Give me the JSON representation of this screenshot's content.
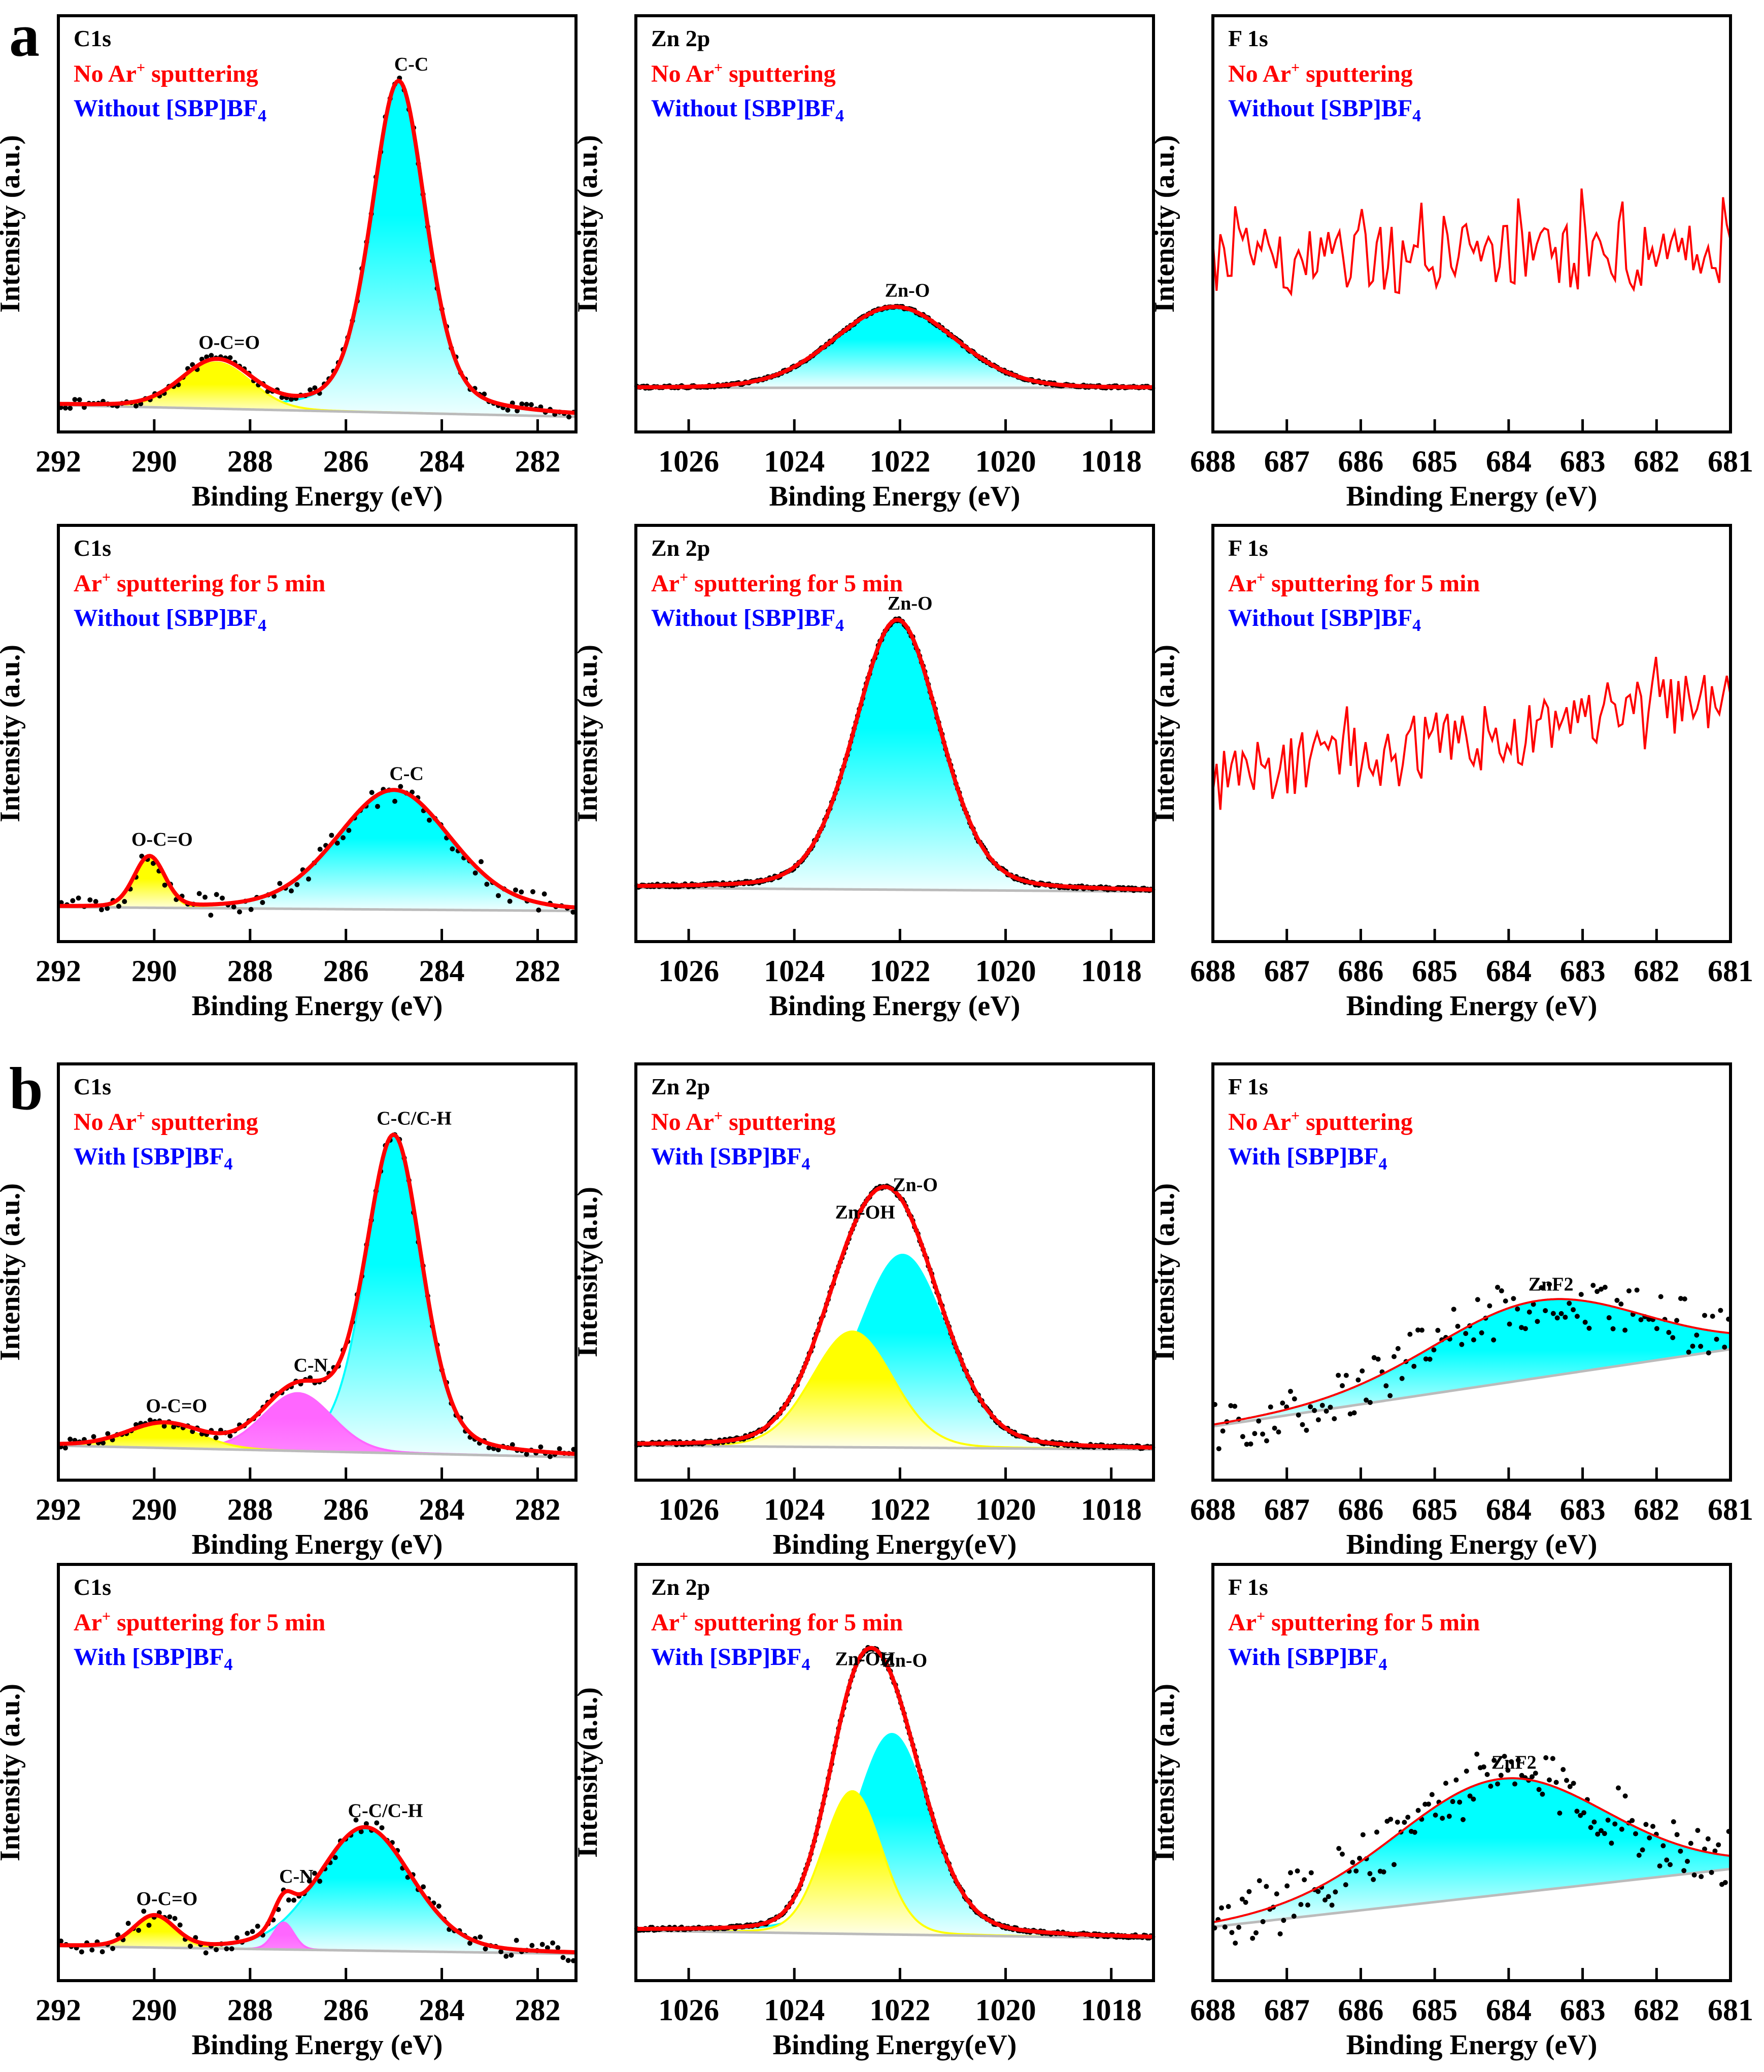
{
  "figure_labels": [
    "a",
    "b"
  ],
  "chart_data": [
    {
      "type": "line",
      "title": "C1s",
      "condition_pre": "No Ar",
      "condition_sup": "+",
      "condition_post": " sputtering",
      "additive": "Without [SBP]BF",
      "additive_sub": "4",
      "xlabel": "Binding Energy (eV)",
      "ylabel": "Intensity (a.u.)",
      "xlim": [
        292,
        281.2
      ],
      "ylim": [
        0,
        1
      ],
      "xticks": [
        "292",
        "290",
        "288",
        "286",
        "284",
        "282"
      ],
      "bg": [
        0.03,
        0.0
      ],
      "mode": "fit",
      "noise": 0.012,
      "points": 110,
      "peaks": [
        {
          "label": "C-C",
          "center": 284.9,
          "height": 0.86,
          "fwhm": 1.35,
          "eta": 0.35,
          "color": "#00ffff"
        },
        {
          "label": "O-C=O",
          "center": 288.7,
          "height": 0.12,
          "fwhm": 1.7,
          "eta": 0.1,
          "color": "#ffff00"
        }
      ]
    },
    {
      "type": "line",
      "title": "Zn 2p",
      "condition_pre": "No Ar",
      "condition_sup": "+",
      "condition_post": " sputtering",
      "additive": "Without [SBP]BF",
      "additive_sub": "4",
      "xlabel": "Binding Energy (eV)",
      "ylabel": "Intensity (a.u.)",
      "xlim": [
        1027,
        1017.2
      ],
      "ylim": [
        0,
        1
      ],
      "xticks": [
        "1026",
        "1024",
        "1022",
        "1020",
        "1018"
      ],
      "bg": [
        0.075,
        0.075
      ],
      "mode": "fit",
      "noise": 0.003,
      "points": 300,
      "peaks": [
        {
          "label": "Zn-O",
          "center": 1022.1,
          "height": 0.21,
          "fwhm": 2.7,
          "eta": 0.1,
          "color": "#00ffff"
        }
      ]
    },
    {
      "type": "line",
      "title": "F 1s",
      "condition_pre": "No Ar",
      "condition_sup": "+",
      "condition_post": " sputtering",
      "additive": "Without [SBP]BF",
      "additive_sub": "4",
      "xlabel": "Binding Energy (eV)",
      "ylabel": "Intensity (a.u.)",
      "xlim": [
        688,
        681
      ],
      "ylim": [
        0,
        1
      ],
      "xticks": [
        "688",
        "687",
        "686",
        "685",
        "684",
        "683",
        "682",
        "681"
      ],
      "bg": [
        0.4,
        0.42
      ],
      "mode": "noise-line",
      "noise": 0.09,
      "points": 140,
      "peaks": []
    },
    {
      "type": "line",
      "title": "C1s",
      "condition_pre": "Ar",
      "condition_sup": "+",
      "condition_post": " sputtering for 5 min",
      "additive": "Without [SBP]BF",
      "additive_sub": "4",
      "xlabel": "Binding Energy (eV)",
      "ylabel": "Intensity (a.u.)",
      "xlim": [
        292,
        281.2
      ],
      "ylim": [
        0,
        1
      ],
      "xticks": [
        "292",
        "290",
        "288",
        "286",
        "284",
        "282"
      ],
      "bg": [
        0.05,
        0.04
      ],
      "mode": "fit",
      "noise": 0.03,
      "points": 90,
      "peaks": [
        {
          "label": "C-C",
          "center": 285.0,
          "height": 0.31,
          "fwhm": 2.8,
          "eta": 0.2,
          "color": "#00ffff"
        },
        {
          "label": "O-C=O",
          "center": 290.1,
          "height": 0.13,
          "fwhm": 0.75,
          "eta": 0.1,
          "color": "#ffff00"
        }
      ]
    },
    {
      "type": "line",
      "title": "Zn 2p",
      "condition_pre": "Ar",
      "condition_sup": "+",
      "condition_post": " sputtering for 5 min",
      "additive": "Without [SBP]BF",
      "additive_sub": "4",
      "xlabel": "Binding Energy (eV)",
      "ylabel": "Intensity (a.u.)",
      "xlim": [
        1027,
        1017.2
      ],
      "ylim": [
        0,
        1
      ],
      "xticks": [
        "1026",
        "1024",
        "1022",
        "1020",
        "1018"
      ],
      "bg": [
        0.1,
        0.09
      ],
      "mode": "fit",
      "noise": 0.004,
      "points": 300,
      "peaks": [
        {
          "label": "Zn-O",
          "center": 1022.05,
          "height": 0.7,
          "fwhm": 1.9,
          "eta": 0.2,
          "color": "#00ffff"
        }
      ]
    },
    {
      "type": "line",
      "title": "F 1s",
      "condition_pre": "Ar",
      "condition_sup": "+",
      "condition_post": " sputtering for 5 min",
      "additive": "Without [SBP]BF",
      "additive_sub": "4",
      "xlabel": "Binding Energy (eV)",
      "ylabel": "Intensity (a.u.)",
      "xlim": [
        688,
        681
      ],
      "ylim": [
        0,
        1
      ],
      "xticks": [
        "688",
        "687",
        "686",
        "685",
        "684",
        "683",
        "682",
        "681"
      ],
      "bg": [
        0.38,
        0.58
      ],
      "mode": "noise-line",
      "noise": 0.09,
      "points": 140,
      "peaks": []
    },
    {
      "type": "line",
      "title": "C1s",
      "condition_pre": "No Ar",
      "condition_sup": "+",
      "condition_post": " sputtering",
      "additive": "With [SBP]BF",
      "additive_sub": "4",
      "xlabel": "Binding Energy (eV)",
      "ylabel": "Intensity (a.u.)",
      "xlim": [
        292,
        281.2
      ],
      "ylim": [
        0,
        1
      ],
      "xticks": [
        "292",
        "290",
        "288",
        "286",
        "284",
        "282"
      ],
      "bg": [
        0.05,
        0.02
      ],
      "mode": "fit",
      "noise": 0.012,
      "points": 110,
      "peaks": [
        {
          "label": "C-C/C-H",
          "center": 285.0,
          "height": 0.82,
          "fwhm": 1.4,
          "eta": 0.3,
          "color": "#00ffff"
        },
        {
          "label": "C-N",
          "center": 287.0,
          "height": 0.15,
          "fwhm": 1.7,
          "eta": 0.1,
          "color": "#ff66ff"
        },
        {
          "label": "O-C=O",
          "center": 289.8,
          "height": 0.06,
          "fwhm": 1.8,
          "eta": 0.1,
          "color": "#ffff00"
        }
      ]
    },
    {
      "type": "line",
      "title": "Zn 2p",
      "condition_pre": "No Ar",
      "condition_sup": "+",
      "condition_post": " sputtering",
      "additive": "With [SBP]BF",
      "additive_sub": "4",
      "xlabel": "Binding Energy(eV)",
      "ylabel": "Intensity(a.u.)",
      "xlim": [
        1027,
        1017.2
      ],
      "ylim": [
        0,
        1
      ],
      "xticks": [
        "1026",
        "1024",
        "1022",
        "1020",
        "1018"
      ],
      "bg": [
        0.05,
        0.04
      ],
      "mode": "fit",
      "noise": 0.004,
      "points": 300,
      "peaks": [
        {
          "label": "Zn-O",
          "center": 1021.95,
          "height": 0.5,
          "fwhm": 2.0,
          "eta": 0.2,
          "color": "#00ffff"
        },
        {
          "label": "Zn-OH",
          "center": 1022.9,
          "height": 0.3,
          "fwhm": 1.8,
          "eta": 0.1,
          "color": "#ffff00"
        }
      ]
    },
    {
      "type": "line",
      "title": "F 1s",
      "condition_pre": "No Ar",
      "condition_sup": "+",
      "condition_post": " sputtering",
      "additive": "With [SBP]BF",
      "additive_sub": "4",
      "xlabel": "Binding Energy (eV)",
      "ylabel": "Intensity (a.u.)",
      "xlim": [
        688,
        681
      ],
      "ylim": [
        0,
        1
      ],
      "xticks": [
        "688",
        "687",
        "686",
        "685",
        "684",
        "683",
        "682",
        "681"
      ],
      "bg": [
        0.1,
        0.3
      ],
      "mode": "scatter-fit",
      "noise": 0.07,
      "points": 130,
      "peaks": [
        {
          "label": "ZnF2",
          "center": 683.6,
          "height": 0.2,
          "fwhm": 3.4,
          "eta": 0.1,
          "color": "#00ffff"
        }
      ]
    },
    {
      "type": "line",
      "title": "C1s",
      "condition_pre": "Ar",
      "condition_sup": "+",
      "condition_post": " sputtering for 5 min",
      "additive": "With [SBP]BF",
      "additive_sub": "4",
      "xlabel": "Binding Energy (eV)",
      "ylabel": "Intensity (a.u.)",
      "xlim": [
        292,
        281.2
      ],
      "ylim": [
        0,
        1
      ],
      "xticks": [
        "292",
        "290",
        "288",
        "286",
        "284",
        "282"
      ],
      "bg": [
        0.05,
        0.03
      ],
      "mode": "fit",
      "noise": 0.025,
      "points": 100,
      "peaks": [
        {
          "label": "C-C/C-H",
          "center": 285.6,
          "height": 0.32,
          "fwhm": 2.3,
          "eta": 0.2,
          "color": "#00ffff"
        },
        {
          "label": "C-N",
          "center": 287.3,
          "height": 0.07,
          "fwhm": 0.5,
          "eta": 0.1,
          "color": "#ff66ff"
        },
        {
          "label": "O-C=O",
          "center": 290.0,
          "height": 0.08,
          "fwhm": 1.0,
          "eta": 0.1,
          "color": "#ffff00"
        }
      ]
    },
    {
      "type": "line",
      "title": "Zn 2p",
      "condition_pre": "Ar",
      "condition_sup": "+",
      "condition_post": " sputtering for 5 min",
      "additive": "With [SBP]BF",
      "additive_sub": "4",
      "xlabel": "Binding Energy(eV)",
      "ylabel": "Intensity(a.u.)",
      "xlim": [
        1027,
        1017.2
      ],
      "ylim": [
        0,
        1
      ],
      "xticks": [
        "1026",
        "1024",
        "1022",
        "1020",
        "1018"
      ],
      "bg": [
        0.09,
        0.07
      ],
      "mode": "fit",
      "noise": 0.004,
      "points": 300,
      "peaks": [
        {
          "label": "Zn-O",
          "center": 1022.15,
          "height": 0.52,
          "fwhm": 1.7,
          "eta": 0.25,
          "color": "#00ffff"
        },
        {
          "label": "Zn-OH",
          "center": 1022.9,
          "height": 0.37,
          "fwhm": 1.3,
          "eta": 0.1,
          "color": "#ffff00"
        }
      ]
    },
    {
      "type": "line",
      "title": "F 1s",
      "condition_pre": "Ar",
      "condition_sup": "+",
      "condition_post": " sputtering for 5 min",
      "additive": "With [SBP]BF",
      "additive_sub": "4",
      "xlabel": "Binding Energy (eV)",
      "ylabel": "Intensity (a.u.)",
      "xlim": [
        688,
        681
      ],
      "ylim": [
        0,
        1
      ],
      "xticks": [
        "688",
        "687",
        "686",
        "685",
        "684",
        "683",
        "682",
        "681"
      ],
      "bg": [
        0.1,
        0.25
      ],
      "mode": "scatter-fit",
      "noise": 0.08,
      "points": 150,
      "peaks": [
        {
          "label": "ZnF2",
          "center": 684.1,
          "height": 0.3,
          "fwhm": 3.4,
          "eta": 0.1,
          "color": "#00ffff"
        }
      ]
    }
  ]
}
